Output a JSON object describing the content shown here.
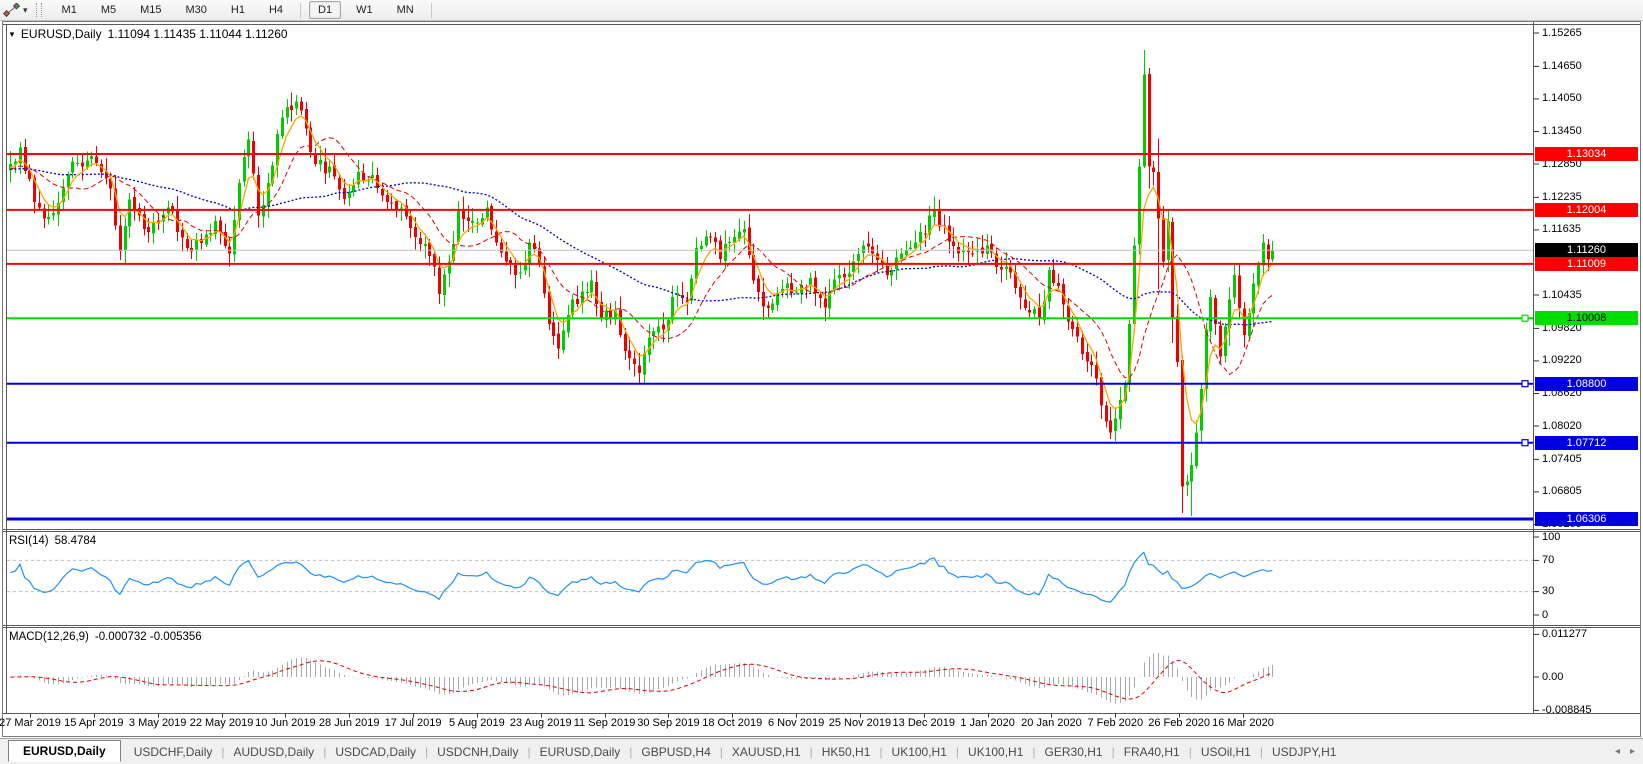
{
  "toolbar": {
    "timeframes": [
      "M1",
      "M5",
      "M15",
      "M30",
      "H1",
      "H4",
      "D1",
      "W1",
      "MN"
    ],
    "active_timeframe": "D1"
  },
  "chart": {
    "title_symbol": "EURUSD,Daily",
    "title_ohlc": "1.11094 1.11435 1.11044 1.11260"
  },
  "indicators": {
    "rsi_label": "RSI(14)",
    "rsi_value": "58.4784",
    "macd_label": "MACD(12,26,9)",
    "macd_values": "-0.000732 -0.005356"
  },
  "axes": {
    "price_ticks": [
      "1.15265",
      "1.14650",
      "1.14050",
      "1.13450",
      "1.12850",
      "1.12235",
      "1.11635",
      "1.10435",
      "1.09820",
      "1.09220",
      "1.08620",
      "1.08020",
      "1.07405",
      "1.06805",
      "1.06205"
    ],
    "rsi_ticks": [
      {
        "v": 100,
        "label": "100"
      },
      {
        "v": 70,
        "label": "70"
      },
      {
        "v": 30,
        "label": "30"
      },
      {
        "v": 0,
        "label": "0"
      }
    ],
    "macd_ticks": [
      {
        "v": 0.011277,
        "label": "0.011277"
      },
      {
        "v": 0,
        "label": "0.00"
      },
      {
        "v": -0.008845,
        "label": "-0.008845"
      }
    ],
    "date_labels": [
      "27 Mar 2019",
      "15 Apr 2019",
      "3 May 2019",
      "22 May 2019",
      "10 Jun 2019",
      "28 Jun 2019",
      "17 Jul 2019",
      "5 Aug 2019",
      "23 Aug 2019",
      "11 Sep 2019",
      "30 Sep 2019",
      "18 Oct 2019",
      "6 Nov 2019",
      "25 Nov 2019",
      "13 Dec 2019",
      "1 Jan 2020",
      "20 Jan 2020",
      "7 Feb 2020",
      "26 Feb 2020",
      "16 Mar 2020"
    ]
  },
  "chart_data": {
    "type": "candlestick",
    "symbol": "EURUSD",
    "timeframe": "Daily",
    "bar_count": 266,
    "price_axis_range": {
      "top": 1.15412,
      "bottom": 1.0614
    },
    "last_bar": {
      "open": 1.11094,
      "high": 1.11435,
      "low": 1.11044,
      "close": 1.1126
    },
    "bull_color": "#00CC00",
    "bear_color": "#EE0000",
    "rsi_color": "#1E90FF",
    "rsi_levels": [
      70,
      30
    ],
    "macd_hist_color": "#a9a9a9",
    "macd_signal_color": "#e00000",
    "ma": [
      {
        "name": "fast-ma",
        "period": 5,
        "method": "ema",
        "color": "#FFA500",
        "style": "solid"
      },
      {
        "name": "medium-ma",
        "period": 13,
        "method": "sma",
        "color": "#E00000",
        "style": "dash"
      },
      {
        "name": "slow-ma",
        "period": 45,
        "method": "sma",
        "color": "#0000C8",
        "style": "dot"
      }
    ],
    "lines": [
      {
        "price": 1.13034,
        "label": "1.13034",
        "color": "#FF0000",
        "width": 2,
        "label_bg": "#FF0000",
        "label_fg": "#FFFFFF",
        "handle": false
      },
      {
        "price": 1.12004,
        "label": "1.12004",
        "color": "#FF0000",
        "width": 2,
        "label_bg": "#FF0000",
        "label_fg": "#FFFFFF",
        "handle": false
      },
      {
        "price": 1.11009,
        "label": "1.11009",
        "color": "#FF0000",
        "width": 2,
        "label_bg": "#FF0000",
        "label_fg": "#FFFFFF",
        "handle": false
      },
      {
        "price": 1.10008,
        "label": "1.10008",
        "color": "#00DD00",
        "width": 2,
        "label_bg": "#00DD00",
        "label_fg": "#000000",
        "handle": true
      },
      {
        "price": 1.088,
        "label": "1.08800",
        "color": "#0000E0",
        "width": 2,
        "label_bg": "#0000E0",
        "label_fg": "#FFFFFF",
        "handle": true
      },
      {
        "price": 1.07712,
        "label": "1.07712",
        "color": "#0000E0",
        "width": 2,
        "label_bg": "#0000E0",
        "label_fg": "#FFFFFF",
        "handle": true
      },
      {
        "price": 1.06306,
        "label": "1.06306",
        "color": "#0000E0",
        "width": 3,
        "label_bg": "#0000E0",
        "label_fg": "#FFFFFF",
        "handle": false
      }
    ],
    "current_price": {
      "price": 1.1126,
      "label": "1.11260",
      "color": "#c0c0c0",
      "label_bg": "#000000",
      "label_fg": "#FFFFFF"
    },
    "close_anchors": [
      [
        0,
        1.1285
      ],
      [
        2,
        1.1315
      ],
      [
        5,
        1.1215
      ],
      [
        7,
        1.1185
      ],
      [
        9,
        1.1195
      ],
      [
        11,
        1.124
      ],
      [
        13,
        1.129
      ],
      [
        15,
        1.128
      ],
      [
        17,
        1.13
      ],
      [
        19,
        1.127
      ],
      [
        21,
        1.124
      ],
      [
        23,
        1.1125
      ],
      [
        25,
        1.122
      ],
      [
        27,
        1.119
      ],
      [
        29,
        1.116
      ],
      [
        31,
        1.1175
      ],
      [
        33,
        1.1205
      ],
      [
        35,
        1.116
      ],
      [
        37,
        1.113
      ],
      [
        39,
        1.1145
      ],
      [
        41,
        1.1155
      ],
      [
        43,
        1.118
      ],
      [
        46,
        1.112
      ],
      [
        48,
        1.125
      ],
      [
        50,
        1.133
      ],
      [
        52,
        1.119
      ],
      [
        54,
        1.125
      ],
      [
        56,
        1.134
      ],
      [
        58,
        1.139
      ],
      [
        60,
        1.14
      ],
      [
        62,
        1.135
      ],
      [
        64,
        1.1285
      ],
      [
        67,
        1.128
      ],
      [
        70,
        1.122
      ],
      [
        73,
        1.127
      ],
      [
        76,
        1.1265
      ],
      [
        79,
        1.1215
      ],
      [
        82,
        1.1205
      ],
      [
        85,
        1.115
      ],
      [
        88,
        1.1115
      ],
      [
        90,
        1.1045
      ],
      [
        92,
        1.1105
      ],
      [
        94,
        1.12
      ],
      [
        97,
        1.118
      ],
      [
        100,
        1.1205
      ],
      [
        102,
        1.114
      ],
      [
        105,
        1.11
      ],
      [
        107,
        1.1085
      ],
      [
        109,
        1.114
      ],
      [
        111,
        1.11
      ],
      [
        113,
        1.099
      ],
      [
        115,
        1.0945
      ],
      [
        118,
        1.1035
      ],
      [
        120,
        1.105
      ],
      [
        122,
        1.107
      ],
      [
        124,
        1.1
      ],
      [
        127,
        1.1015
      ],
      [
        129,
        1.094
      ],
      [
        132,
        1.09
      ],
      [
        134,
        1.0965
      ],
      [
        137,
        1.098
      ],
      [
        139,
        1.104
      ],
      [
        142,
        1.103
      ],
      [
        144,
        1.113
      ],
      [
        147,
        1.115
      ],
      [
        149,
        1.111
      ],
      [
        152,
        1.115
      ],
      [
        154,
        1.1165
      ],
      [
        156,
        1.107
      ],
      [
        159,
        1.102
      ],
      [
        162,
        1.1055
      ],
      [
        165,
        1.105
      ],
      [
        168,
        1.1075
      ],
      [
        171,
        1.102
      ],
      [
        174,
        1.108
      ],
      [
        177,
        1.1105
      ],
      [
        179,
        1.1135
      ],
      [
        181,
        1.112
      ],
      [
        184,
        1.108
      ],
      [
        187,
        1.112
      ],
      [
        190,
        1.114
      ],
      [
        194,
        1.12
      ],
      [
        196,
        1.117
      ],
      [
        199,
        1.112
      ],
      [
        202,
        1.112
      ],
      [
        205,
        1.1135
      ],
      [
        207,
        1.1095
      ],
      [
        210,
        1.1085
      ],
      [
        213,
        1.102
      ],
      [
        216,
        1.1
      ],
      [
        218,
        1.109
      ],
      [
        220,
        1.106
      ],
      [
        222,
        1.0995
      ],
      [
        225,
        1.0935
      ],
      [
        227,
        1.0915
      ],
      [
        229,
        1.084
      ],
      [
        231,
        1.079
      ],
      [
        233,
        1.085
      ],
      [
        234,
        1.088
      ],
      [
        235,
        1.099
      ],
      [
        236,
        1.1135
      ],
      [
        237,
        1.128
      ],
      [
        238,
        1.145
      ],
      [
        239,
        1.128
      ],
      [
        240,
        1.127
      ],
      [
        241,
        1.1185
      ],
      [
        242,
        1.1105
      ],
      [
        243,
        1.118
      ],
      [
        244,
        1.1
      ],
      [
        245,
        1.092
      ],
      [
        246,
        1.069
      ],
      [
        247,
        1.07
      ],
      [
        248,
        1.073
      ],
      [
        249,
        1.079
      ],
      [
        250,
        1.087
      ],
      [
        251,
        1.098
      ],
      [
        252,
        1.104
      ],
      [
        253,
        1.099
      ],
      [
        254,
        1.093
      ],
      [
        255,
        1.0985
      ],
      [
        256,
        1.1035
      ],
      [
        257,
        1.108
      ],
      [
        258,
        1.102
      ],
      [
        259,
        1.097
      ],
      [
        260,
        1.101
      ],
      [
        261,
        1.1065
      ],
      [
        262,
        1.11
      ],
      [
        263,
        1.114
      ],
      [
        264,
        1.1109
      ],
      [
        265,
        1.1126
      ]
    ],
    "bar_overrides": [
      [
        23,
        null,
        1.1108
      ],
      [
        60,
        1.1412,
        null
      ],
      [
        90,
        null,
        1.1027
      ],
      [
        115,
        null,
        1.0926
      ],
      [
        132,
        null,
        1.0879
      ],
      [
        231,
        null,
        1.0778
      ],
      [
        238,
        1.1495,
        1.1278
      ],
      [
        239,
        1.1462,
        1.124
      ],
      [
        241,
        1.1332,
        1.1054
      ],
      [
        244,
        null,
        1.0955
      ],
      [
        246,
        1.0932,
        1.0642
      ],
      [
        248,
        null,
        1.0636
      ],
      [
        256,
        null,
        1.095
      ]
    ]
  },
  "tabs": {
    "items": [
      "EURUSD,Daily",
      "USDCHF,Daily",
      "AUDUSD,Daily",
      "USDCAD,Daily",
      "USDCNH,Daily",
      "EURUSD,Daily",
      "GBPUSD,H4",
      "XAUUSD,H1",
      "HK50,H1",
      "UK100,H1",
      "UK100,H1",
      "GER30,H1",
      "FRA40,H1",
      "USOil,H1",
      "USDJPY,H1"
    ],
    "active_index": 0
  }
}
